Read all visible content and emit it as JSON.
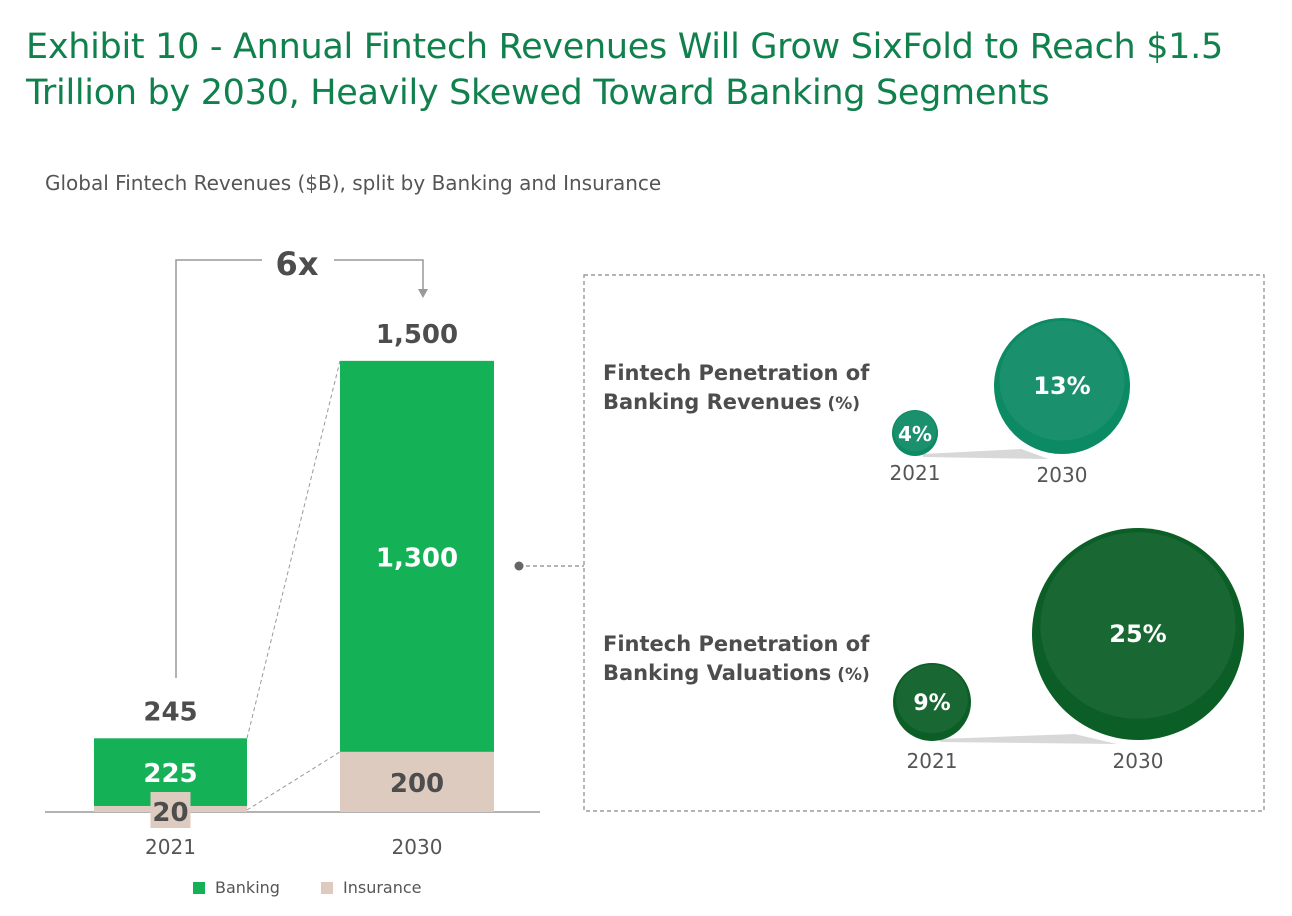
{
  "title": "Exhibit 10 - Annual Fintech Revenues Will Grow SixFold to Reach $1.5 Trillion by 2030, Heavily Skewed Toward Banking Segments",
  "subtitle": "Global Fintech Revenues ($B), split by Banking and Insurance",
  "colors": {
    "banking": "#14b157",
    "insurance": "#ddcbbf",
    "title": "#10804d",
    "bubble_revenue": "#0c8a63",
    "bubble_valuation": "#0b5e26",
    "text_dark": "#4d4d4d"
  },
  "chart_data": [
    {
      "type": "bar",
      "stacked": true,
      "categories": [
        "2021",
        "2030"
      ],
      "series": [
        {
          "name": "Insurance",
          "values": [
            20,
            200
          ],
          "labels": [
            "20",
            "200"
          ]
        },
        {
          "name": "Banking",
          "values": [
            225,
            1300
          ],
          "labels": [
            "225",
            "1,300"
          ]
        }
      ],
      "totals": [
        245,
        1500
      ],
      "total_labels": [
        "245",
        "1,500"
      ],
      "growth_annotation": "6x",
      "legend": [
        "Banking",
        "Insurance"
      ],
      "legend_position": "bottom-left",
      "ylim": [
        0,
        1500
      ]
    },
    {
      "type": "scatter",
      "bubble": true,
      "panels": [
        {
          "title": "Fintech Penetration of Banking Revenues (%)",
          "title_lines": [
            "Fintech Penetration of",
            "Banking Revenues"
          ],
          "unit": "(%)",
          "x": [
            "2021",
            "2030"
          ],
          "values": [
            4,
            13
          ],
          "labels": [
            "4%",
            "13%"
          ]
        },
        {
          "title": "Fintech Penetration of Banking Valuations (%)",
          "title_lines": [
            "Fintech Penetration of",
            "Banking Valuations"
          ],
          "unit": "(%)",
          "x": [
            "2021",
            "2030"
          ],
          "values": [
            9,
            25
          ],
          "labels": [
            "9%",
            "25%"
          ]
        }
      ]
    }
  ]
}
